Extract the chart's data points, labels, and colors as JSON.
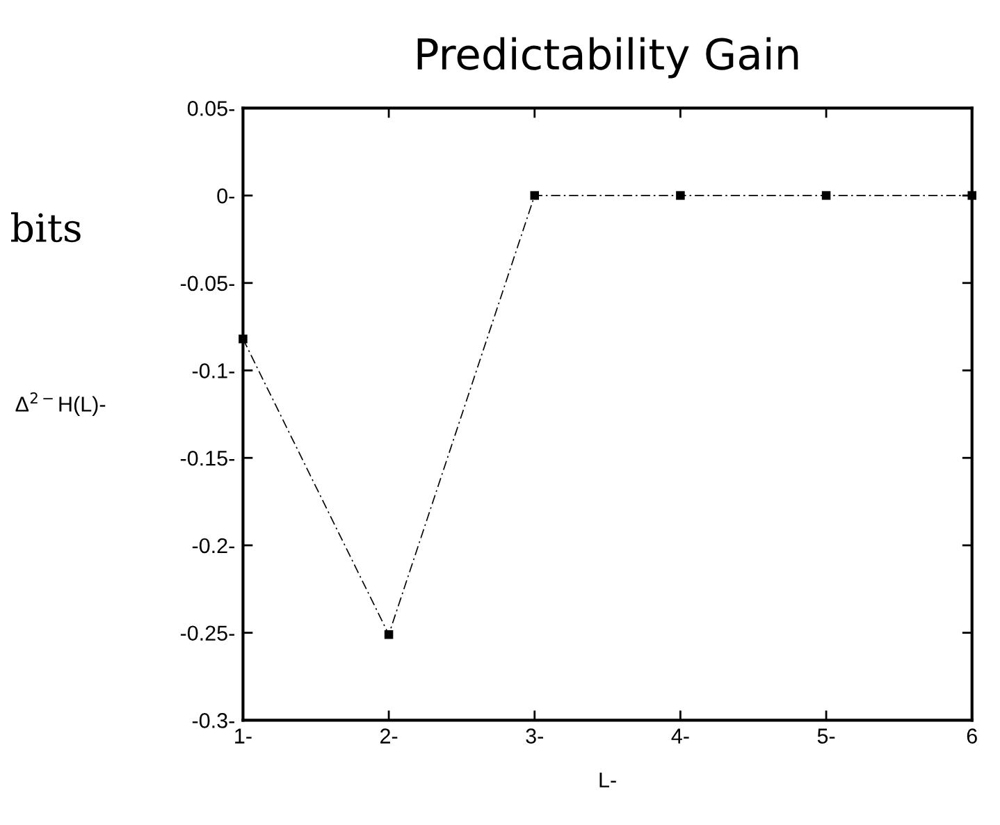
{
  "chart_data": {
    "type": "line",
    "title": "Predictability Gain",
    "xlabel": "L-",
    "ylabel": "Δ$^{2−}$H(L)-",
    "annotations": [
      "bits"
    ],
    "x": [
      1,
      2,
      3,
      4,
      5,
      6
    ],
    "series": [
      {
        "color": "#000000",
        "values": [
          -0.082,
          -0.251,
          0,
          0,
          0,
          0
        ]
      }
    ],
    "xlim": [
      1,
      6
    ],
    "ylim": [
      -0.3,
      0.05
    ],
    "xticks": [
      {
        "value": 1,
        "label": "1-"
      },
      {
        "value": 2,
        "label": "2-"
      },
      {
        "value": 3,
        "label": "3-"
      },
      {
        "value": 4,
        "label": "4-"
      },
      {
        "value": 5,
        "label": "5-"
      },
      6
    ],
    "yticks": [
      {
        "value": -0.3,
        "label": "-0.3-"
      },
      {
        "value": -0.25,
        "label": "-0.25-"
      },
      {
        "value": -0.2,
        "label": "-0.2-"
      },
      {
        "value": -0.15,
        "label": "-0.15-"
      },
      {
        "value": -0.1,
        "label": "-0.1-"
      },
      {
        "value": -0.05,
        "label": "-0.05-"
      },
      {
        "value": 0,
        "label": "0-"
      },
      {
        "value": 0.05,
        "label": "0.05-"
      }
    ],
    "grid": false,
    "legend": false,
    "marker": "square",
    "line_style": "dashed"
  }
}
